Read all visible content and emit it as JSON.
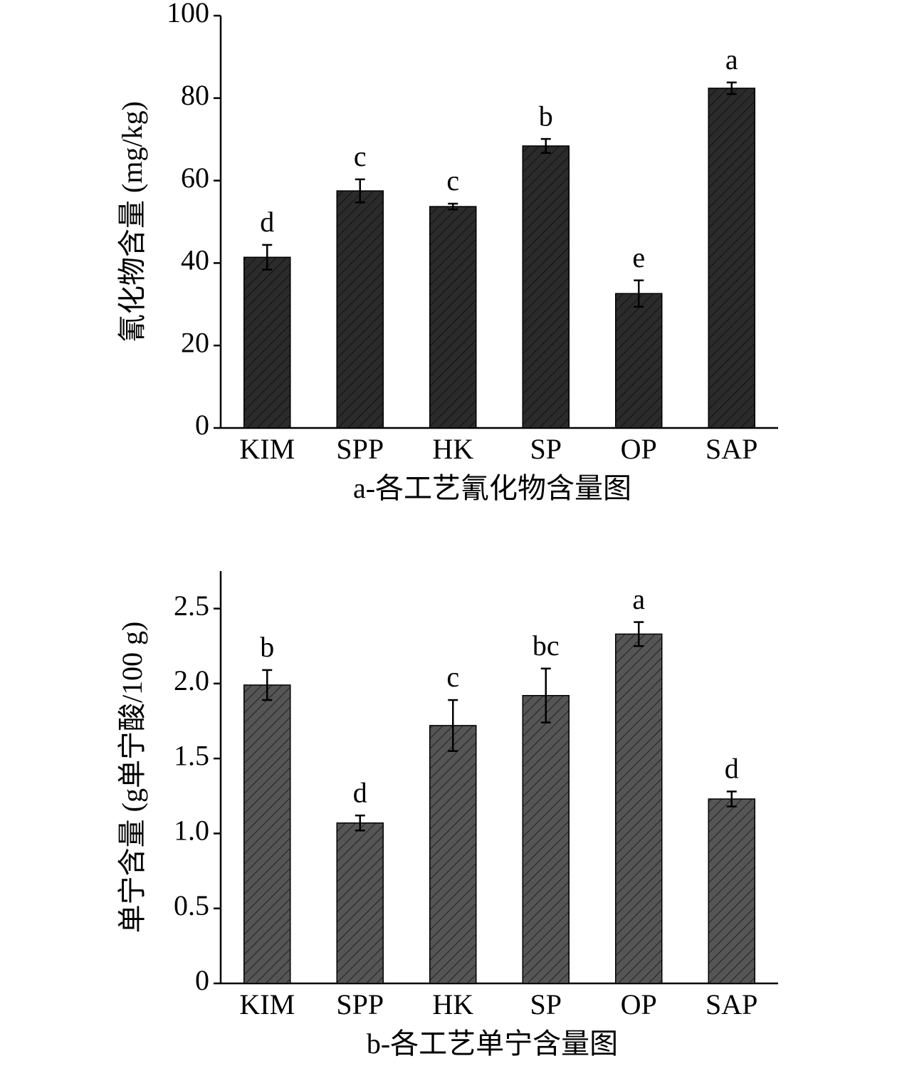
{
  "chart_data": [
    {
      "type": "bar",
      "title": "a-各工艺氰化物含量图",
      "ylabel": "氰化物含量 (mg/kg)",
      "categories": [
        "KIM",
        "SPP",
        "HK",
        "SP",
        "OP",
        "SAP"
      ],
      "values": [
        41.4,
        57.5,
        53.7,
        68.4,
        32.6,
        82.4
      ],
      "errors": [
        3.0,
        2.8,
        0.7,
        1.7,
        3.2,
        1.4
      ],
      "letters": [
        "d",
        "c",
        "c",
        "b",
        "e",
        "a"
      ],
      "color": "#2b2b2b",
      "hatch": true,
      "ylim": [
        0,
        100
      ],
      "yticks": [
        0,
        20,
        40,
        60,
        80,
        100
      ]
    },
    {
      "type": "bar",
      "title": "b-各工艺单宁含量图",
      "ylabel": "单宁含量 (g单宁酸/100 g)",
      "categories": [
        "KIM",
        "SPP",
        "HK",
        "SP",
        "OP",
        "SAP"
      ],
      "values": [
        1.99,
        1.07,
        1.72,
        1.92,
        2.33,
        1.23
      ],
      "errors": [
        0.1,
        0.05,
        0.17,
        0.18,
        0.08,
        0.05
      ],
      "letters": [
        "b",
        "d",
        "c",
        "bc",
        "a",
        "d"
      ],
      "color": "#555555",
      "hatch": true,
      "ylim": [
        0,
        2.75
      ],
      "yticks": [
        0,
        0.5,
        {
          "value": 1.0,
          "label": "1.0"
        },
        1.5,
        {
          "value": 2.0,
          "label": "2.0"
        },
        2.5
      ]
    }
  ]
}
